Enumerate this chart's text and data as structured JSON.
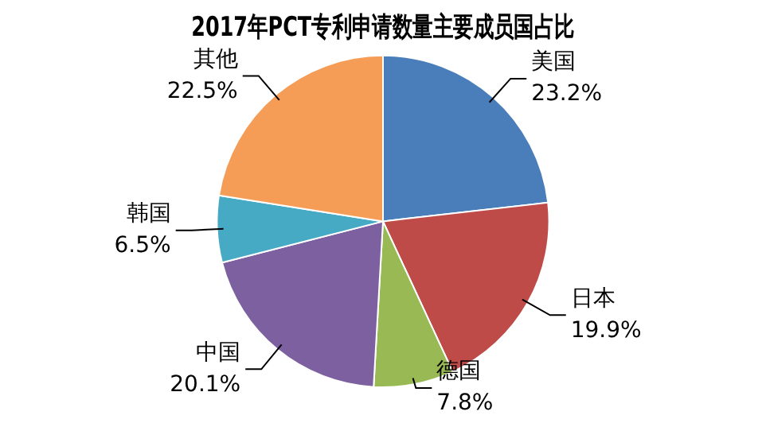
{
  "chart_data": {
    "type": "pie",
    "title": "2017年PCT专利申请数量主要成员国占比",
    "categories": [
      "美国",
      "日本",
      "德国",
      "中国",
      "韩国",
      "其他"
    ],
    "values": [
      23.2,
      19.9,
      7.8,
      20.1,
      6.5,
      22.5
    ],
    "value_labels": [
      "23.2%",
      "19.9%",
      "7.8%",
      "20.1%",
      "6.5%",
      "22.5%"
    ],
    "colors": [
      "#4a7ebb",
      "#be4b48",
      "#98b954",
      "#7d60a0",
      "#46aac5",
      "#f59d56"
    ],
    "legend": false
  }
}
